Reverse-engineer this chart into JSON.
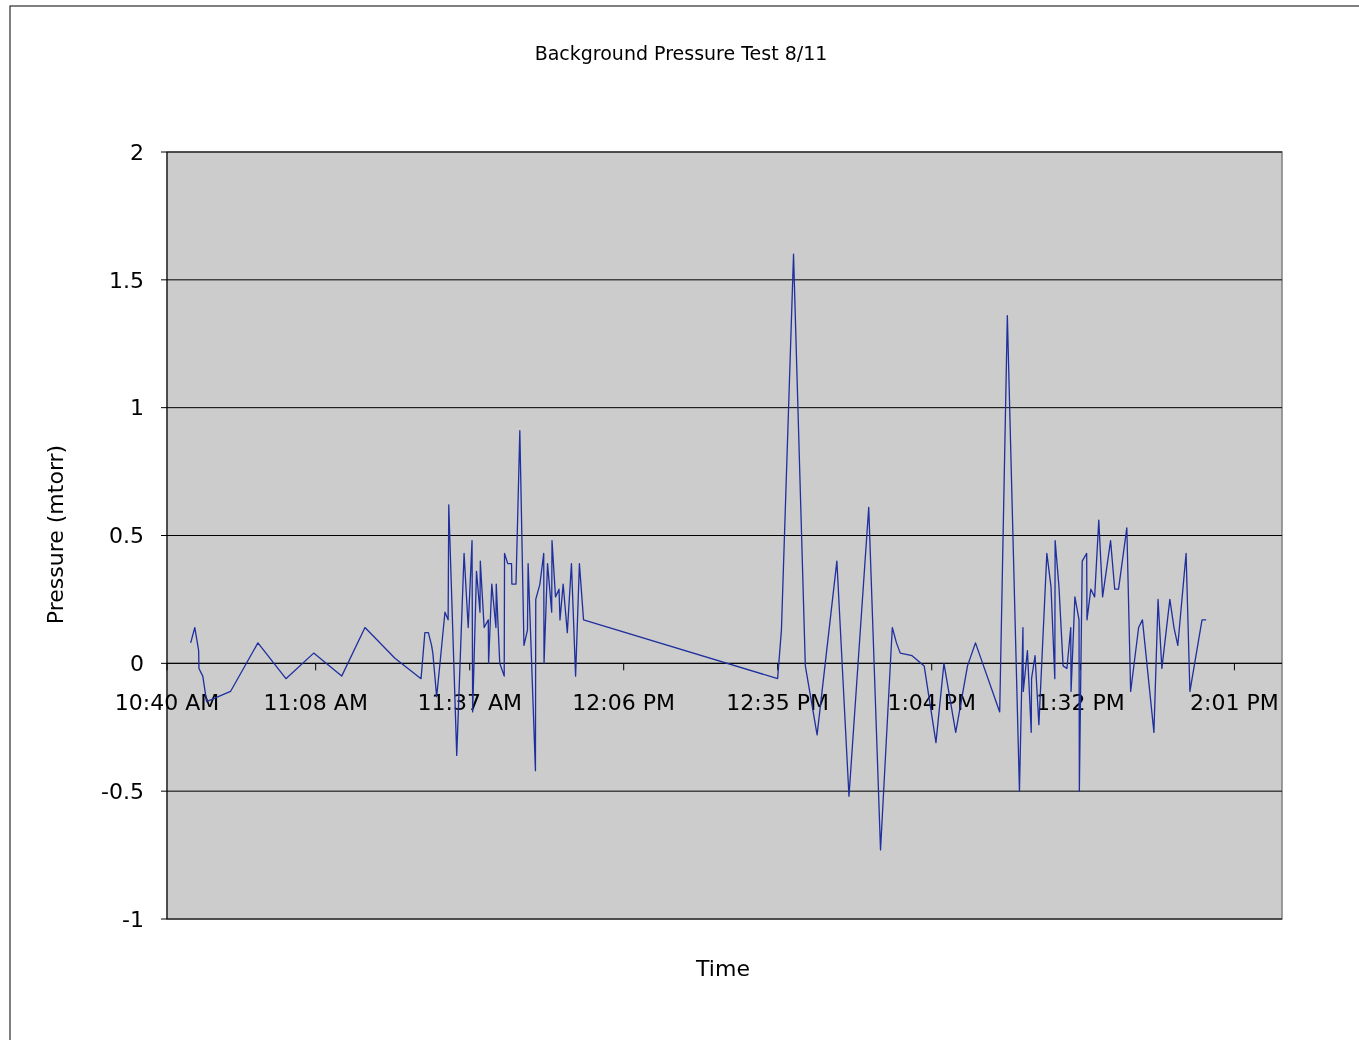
{
  "chart_data": {
    "type": "line",
    "title": "Background Pressure Test 8/11",
    "xlabel": "Time",
    "ylabel": "Pressure (mtorr)",
    "x": [
      10.741,
      10.754,
      10.766,
      10.767,
      10.779,
      10.791,
      10.866,
      10.952,
      11.04,
      11.127,
      11.215,
      11.288,
      11.382,
      11.464,
      11.476,
      11.487,
      11.497,
      11.501,
      11.513,
      11.525,
      11.539,
      11.549,
      11.551,
      11.576,
      11.599,
      11.612,
      11.624,
      11.626,
      11.638,
      11.649,
      11.65,
      11.662,
      11.675,
      11.676,
      11.686,
      11.699,
      11.7,
      11.711,
      11.725,
      11.726,
      11.736,
      11.748,
      11.749,
      11.762,
      11.774,
      11.787,
      11.798,
      11.8,
      11.823,
      11.824,
      11.837,
      11.849,
      11.85,
      11.861,
      11.874,
      11.875,
      11.886,
      11.897,
      11.9,
      11.91,
      11.923,
      11.936,
      11.949,
      11.961,
      11.974,
      12.583,
      12.595,
      12.633,
      12.67,
      12.707,
      12.769,
      12.807,
      12.869,
      12.906,
      12.943,
      12.956,
      12.968,
      13.005,
      13.043,
      13.08,
      13.105,
      13.142,
      13.179,
      13.204,
      13.28,
      13.304,
      13.342,
      13.353,
      13.354,
      13.367,
      13.379,
      13.38,
      13.391,
      13.403,
      13.428,
      13.441,
      13.453,
      13.454,
      13.466,
      13.479,
      13.491,
      13.503,
      13.504,
      13.516,
      13.529,
      13.53,
      13.539,
      13.553,
      13.554,
      13.566,
      13.578,
      13.591,
      13.603,
      13.628,
      13.641,
      13.653,
      13.679,
      13.691,
      13.716,
      13.728,
      13.764,
      13.777,
      13.789,
      13.814,
      13.827,
      13.839,
      13.865,
      13.877,
      13.915,
      13.928
    ],
    "series": [
      {
        "color": "#1f2f9e",
        "values": [
          0.08,
          0.14,
          0.05,
          -0.02,
          -0.05,
          -0.15,
          -0.11,
          0.08,
          -0.06,
          0.04,
          -0.05,
          0.14,
          0.02,
          -0.06,
          0.12,
          0.12,
          0.07,
          0.04,
          -0.13,
          0.02,
          0.2,
          0.17,
          0.62,
          -0.36,
          0.43,
          0.14,
          0.48,
          -0.19,
          0.36,
          0.2,
          0.4,
          0.14,
          0.17,
          0.0,
          0.31,
          0.14,
          0.31,
          0.0,
          -0.05,
          0.43,
          0.39,
          0.39,
          0.31,
          0.31,
          0.91,
          0.07,
          0.13,
          0.39,
          -0.42,
          0.25,
          0.31,
          0.43,
          0.0,
          0.39,
          0.2,
          0.48,
          0.26,
          0.29,
          0.17,
          0.31,
          0.12,
          0.39,
          -0.05,
          0.39,
          0.17,
          -0.06,
          0.13,
          1.6,
          -0.01,
          -0.28,
          0.4,
          -0.52,
          0.61,
          -0.73,
          0.14,
          0.08,
          0.04,
          0.03,
          -0.01,
          -0.31,
          0.0,
          -0.27,
          -0.01,
          0.08,
          -0.19,
          1.36,
          -0.5,
          0.14,
          -0.11,
          0.05,
          -0.27,
          -0.06,
          0.03,
          -0.24,
          0.43,
          0.3,
          -0.06,
          0.48,
          0.3,
          -0.01,
          -0.02,
          0.14,
          -0.11,
          0.26,
          0.17,
          -0.5,
          0.4,
          0.43,
          0.17,
          0.29,
          0.26,
          0.56,
          0.26,
          0.48,
          0.29,
          0.29,
          0.53,
          -0.11,
          0.14,
          0.17,
          -0.27,
          0.25,
          -0.02,
          0.25,
          0.14,
          0.07,
          0.43,
          -0.11,
          0.17,
          0.17
        ]
      }
    ],
    "xlim": [
      10.6667,
      14.166
    ],
    "xticks": [
      {
        "value": 10.6667,
        "label": "10:40 AM"
      },
      {
        "value": 11.1333,
        "label": "11:08 AM"
      },
      {
        "value": 11.6167,
        "label": "11:37 AM"
      },
      {
        "value": 12.1,
        "label": "12:06 PM"
      },
      {
        "value": 12.5833,
        "label": "12:35 PM"
      },
      {
        "value": 13.0667,
        "label": "1:04 PM"
      },
      {
        "value": 13.5333,
        "label": "1:32 PM"
      },
      {
        "value": 14.0167,
        "label": "2:01 PM"
      }
    ],
    "ylim": [
      -1,
      2
    ],
    "yticks": [
      -1,
      -0.5,
      0,
      0.5,
      1,
      1.5,
      2
    ],
    "grid": "y"
  }
}
